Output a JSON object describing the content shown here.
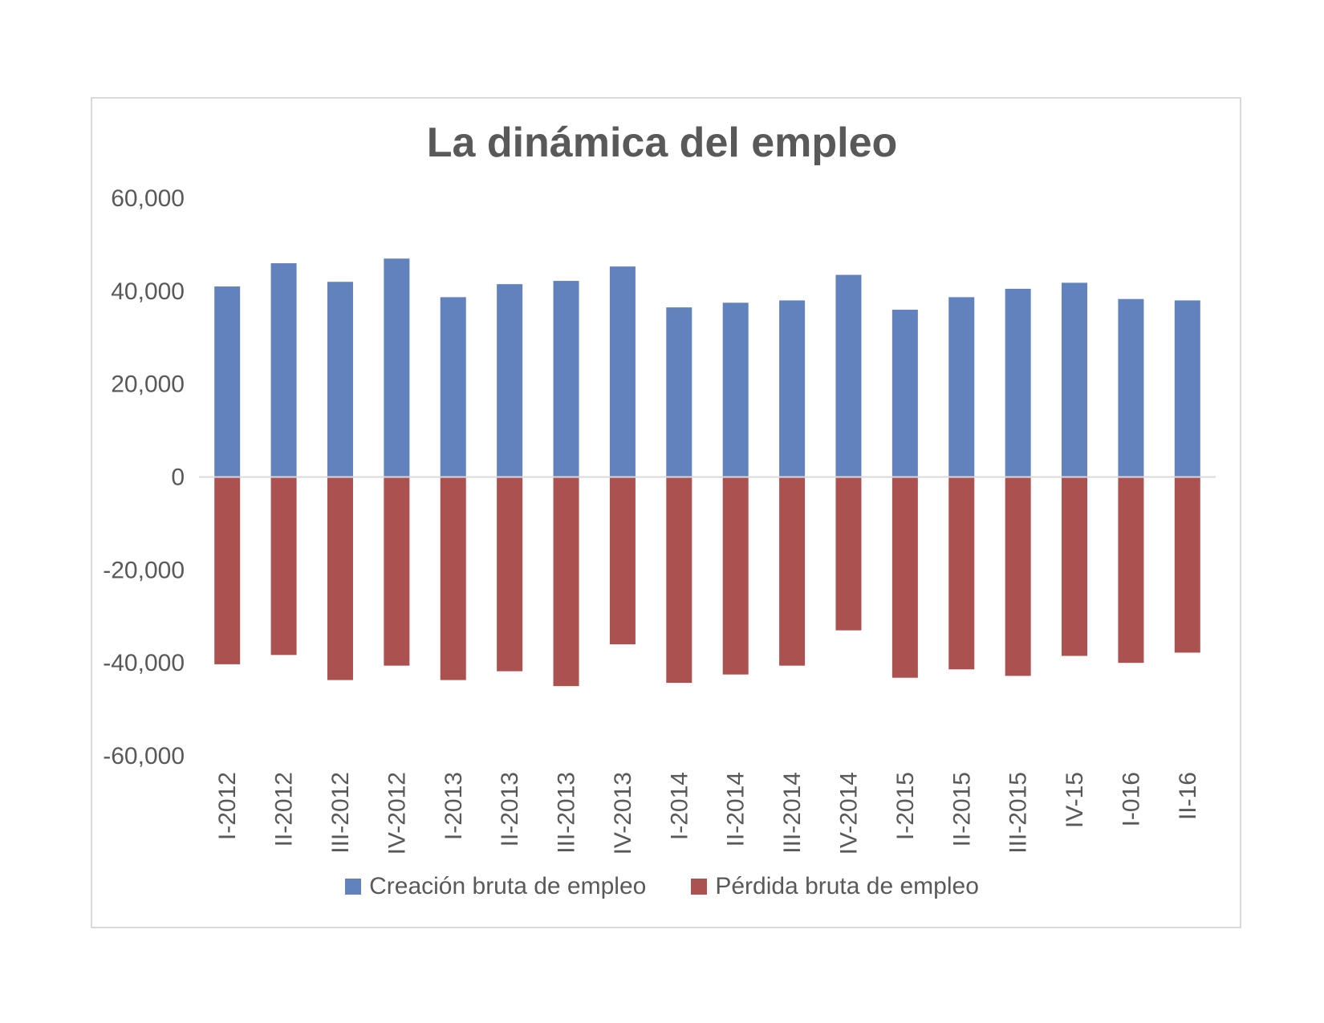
{
  "chart_data": {
    "type": "bar",
    "title": "La dinámica del empleo",
    "xlabel": "",
    "ylabel": "",
    "ylim": [
      -60000,
      60000
    ],
    "yticks": [
      60000,
      40000,
      20000,
      0,
      -20000,
      -40000,
      -60000
    ],
    "ytick_labels": [
      "60,000",
      "40,000",
      "20,000",
      "0",
      "-20,000",
      "-40,000",
      "-60,000"
    ],
    "categories": [
      "I-2012",
      "II-2012",
      "III-2012",
      "IV-2012",
      "I-2013",
      "II-2013",
      "III-2013",
      "IV-2013",
      "I-2014",
      "II-2014",
      "III-2014",
      "IV-2014",
      "I-2015",
      "II-2015",
      "III-2015",
      "IV-15",
      "I-016",
      "II-16"
    ],
    "series": [
      {
        "name": "Creación bruta de empleo",
        "color": "#6182bd",
        "values": [
          41000,
          46000,
          42000,
          47000,
          38700,
          41500,
          42200,
          45300,
          36500,
          37500,
          38000,
          43500,
          36000,
          38700,
          40500,
          41800,
          38300,
          38000
        ]
      },
      {
        "name": "Pérdida bruta de empleo",
        "color": "#ab5250",
        "values": [
          -40300,
          -38300,
          -43700,
          -40600,
          -43700,
          -41800,
          -45000,
          -36000,
          -44300,
          -42500,
          -40600,
          -33000,
          -43200,
          -41400,
          -42800,
          -38500,
          -40000,
          -37800
        ]
      }
    ],
    "grid": false,
    "legend_position": "bottom"
  }
}
